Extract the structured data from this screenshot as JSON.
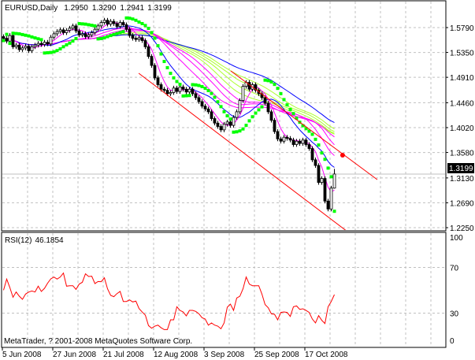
{
  "header": {
    "symbol_label": "EURUSD,Daily",
    "open": "1.2950",
    "high": "1.3290",
    "low": "1.2941",
    "close": "1.3199"
  },
  "rsi_header": {
    "label": "RSI(12)",
    "value": "46.1854"
  },
  "copyright": "MetaTrader, ? 2001-2008 MetaQuotes Software Corp.",
  "current_price": "1.3199",
  "colors": {
    "candle": "#000000",
    "sar": "#00ff00",
    "trendline": "#ff0000",
    "rsi": "#ff0000",
    "ma_blue": "#0000ff",
    "ma_magenta": "#ff00ff",
    "ma_green": "#adff2f",
    "grid": "#c0c0c0"
  },
  "chart_data": [
    {
      "type": "candlestick",
      "title": "EURUSD,Daily",
      "price_axis_labels": [
        "1.5790",
        "1.5350",
        "1.4910",
        "1.4460",
        "1.4020",
        "1.3580",
        "1.3130",
        "1.2690",
        "1.2250"
      ],
      "price_axis_values": [
        1.579,
        1.535,
        1.491,
        1.446,
        1.402,
        1.358,
        1.313,
        1.269,
        1.225
      ],
      "ylim": [
        1.2189,
        1.624
      ],
      "time_axis_labels": [
        {
          "label": "5 Jun 2008",
          "bar": 0
        },
        {
          "label": "27 Jun 2008",
          "bar": 16
        },
        {
          "label": "21 Jul 2008",
          "bar": 32
        },
        {
          "label": "12 Aug 2008",
          "bar": 48
        },
        {
          "label": "3 Sep 2008",
          "bar": 64
        },
        {
          "label": "25 Sep 2008",
          "bar": 80
        },
        {
          "label": "17 Oct 2008",
          "bar": 96
        }
      ],
      "closes": [
        1.56,
        1.555,
        1.565,
        1.545,
        1.548,
        1.54,
        1.543,
        1.546,
        1.538,
        1.545,
        1.548,
        1.551,
        1.549,
        1.553,
        1.55,
        1.562,
        1.568,
        1.572,
        1.575,
        1.57,
        1.574,
        1.578,
        1.582,
        1.573,
        1.566,
        1.568,
        1.563,
        1.566,
        1.57,
        1.576,
        1.582,
        1.588,
        1.592,
        1.585,
        1.59,
        1.586,
        1.581,
        1.588,
        1.584,
        1.576,
        1.565,
        1.56,
        1.558,
        1.561,
        1.556,
        1.545,
        1.528,
        1.512,
        1.49,
        1.478,
        1.47,
        1.468,
        1.462,
        1.464,
        1.472,
        1.466,
        1.474,
        1.47,
        1.465,
        1.47,
        1.462,
        1.455,
        1.448,
        1.44,
        1.435,
        1.43,
        1.418,
        1.41,
        1.404,
        1.398,
        1.408,
        1.412,
        1.406,
        1.42,
        1.43,
        1.45,
        1.475,
        1.482,
        1.47,
        1.478,
        1.468,
        1.462,
        1.455,
        1.445,
        1.43,
        1.415,
        1.395,
        1.382,
        1.378,
        1.385,
        1.383,
        1.38,
        1.372,
        1.378,
        1.374,
        1.38,
        1.372,
        1.365,
        1.345,
        1.335,
        1.305,
        1.312,
        1.272,
        1.258,
        1.295
      ],
      "last_bar": {
        "open": 1.295,
        "high": 1.329,
        "low": 1.2941,
        "close": 1.3199
      },
      "moving_averages": [
        {
          "color": "ma_green",
          "period": 46
        },
        {
          "color": "ma_green",
          "period": 42
        },
        {
          "color": "ma_green",
          "period": 38
        },
        {
          "color": "ma_green",
          "period": 34
        },
        {
          "color": "ma_blue",
          "period": 55
        },
        {
          "color": "ma_magenta",
          "period": 30
        },
        {
          "color": "ma_magenta",
          "period": 26
        },
        {
          "color": "ma_magenta",
          "period": 21
        },
        {
          "color": "ma_blue",
          "period": 13
        },
        {
          "color": "ma_magenta",
          "period": 5
        }
      ],
      "parabolic_sar": {
        "step": 0.02,
        "max": 0.2
      },
      "trendlines": [
        {
          "from": {
            "bar": 72.1,
            "price": 1.5023
          },
          "to": {
            "bar": 118.6,
            "price": 1.31
          }
        },
        {
          "from": {
            "bar": 42.9,
            "price": 1.4982
          },
          "to": {
            "bar": 110.1,
            "price": 1.2139
          }
        }
      ],
      "marker": {
        "bar": 107.6,
        "price": 1.3532
      }
    },
    {
      "type": "line",
      "title": "RSI(12) 46.1854",
      "ylim": [
        0,
        100
      ],
      "axis_labels": [
        "100",
        "70",
        "30",
        "0"
      ],
      "axis_values": [
        100,
        70,
        30,
        0
      ],
      "values": [
        50.1,
        59.8,
        52.4,
        43.9,
        48.5,
        44.8,
        42.1,
        46.7,
        48.5,
        49.4,
        48.5,
        53.6,
        49.0,
        51.7,
        56.3,
        60.0,
        61.6,
        59.8,
        61.6,
        65.1,
        53.6,
        54.0,
        54.0,
        50.8,
        55.4,
        57.0,
        64.4,
        62.1,
        62.3,
        55.9,
        57.7,
        57.5,
        60.9,
        51.3,
        45.5,
        44.4,
        47.1,
        49.0,
        40.2,
        40.2,
        41.6,
        39.8,
        40.5,
        34.0,
        31.0,
        28.3,
        19.1,
        16.8,
        18.6,
        19.5,
        17.2,
        15.6,
        15.6,
        24.1,
        24.1,
        35.6,
        32.4,
        31.0,
        27.6,
        32.4,
        32.4,
        31.5,
        29.4,
        26.0,
        24.8,
        19.5,
        21.4,
        19.5,
        18.6,
        16.3,
        21.4,
        35.2,
        37.9,
        32.4,
        43.2,
        44.8,
        51.3,
        61.6,
        55.4,
        54.0,
        54.0,
        54.0,
        46.7,
        37.5,
        34.7,
        29.4,
        29.0,
        24.1,
        30.6,
        31.0,
        30.6,
        27.1,
        35.6,
        36.3,
        33.3,
        33.8,
        32.4,
        30.6,
        24.8,
        21.4,
        27.8,
        23.7,
        20.9,
        35.6,
        40.2,
        46.2
      ]
    }
  ]
}
